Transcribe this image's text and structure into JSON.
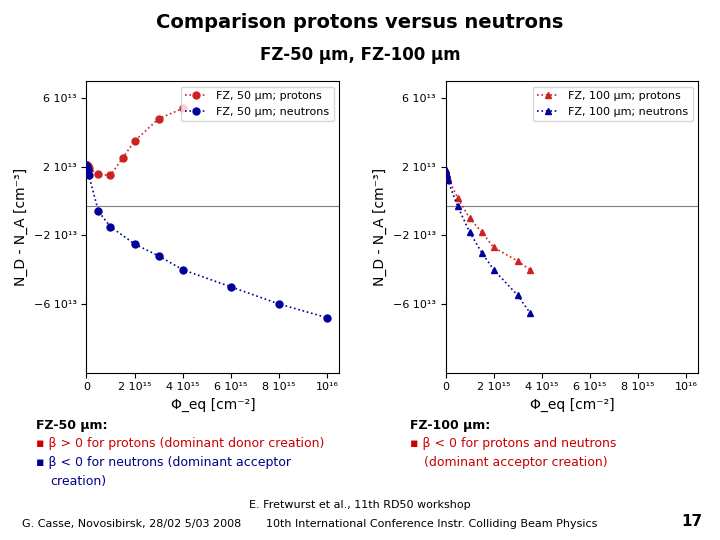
{
  "title": "Comparison protons versus neutrons",
  "subtitle": "FZ-50 μm, FZ-100 μm",
  "annotations": [
    "E. Fretwurst et al., 11th RD50 workshop",
    "G. Casse, Novosibirsk, 28/02 5/03 2008",
    "10th International Conference Instr. Colliding Beam Physics",
    "17"
  ],
  "chart_data": [
    {
      "type": "line",
      "x_label": "Φ_eq [cm⁻²]",
      "y_label": "N_D - N_A [cm⁻³]",
      "xlim": [
        0,
        1.05e+16
      ],
      "ylim": [
        -100000000000000.0,
        70000000000000.0
      ],
      "xticks": [
        0,
        {
          "value": 2000000000000000.0,
          "label": "2 10¹⁵"
        },
        {
          "value": 4000000000000000.0,
          "label": "4 10¹⁵"
        },
        {
          "value": 6000000000000000.0,
          "label": "6 10¹⁵"
        },
        {
          "value": 8000000000000000.0,
          "label": "8 10¹⁵"
        },
        {
          "value": 1e+16,
          "label": "10¹⁶"
        }
      ],
      "yticks": [
        {
          "value": -60000000000000.0,
          "label": "−6 10¹³"
        },
        {
          "value": -20000000000000.0,
          "label": "−2 10¹³"
        },
        {
          "value": 20000000000000.0,
          "label": "2 10¹³"
        },
        {
          "value": 60000000000000.0,
          "label": "6 10¹³"
        }
      ],
      "hline_y": -3000000000000.0,
      "legend": "upper right",
      "series": [
        {
          "name": "FZ, 50 μm; protons",
          "color": "#cc2222",
          "marker": "o",
          "line_style": "dotted",
          "x": [
            0.0,
            20000000000000.0,
            50000000000000.0,
            100000000000000.0,
            500000000000000.0,
            1000000000000000.0,
            1500000000000000.0,
            2000000000000000.0,
            3000000000000000.0,
            4000000000000000.0
          ],
          "values": [
            21000000000000.0,
            21000000000000.0,
            20500000000000.0,
            19000000000000.0,
            15500000000000.0,
            15000000000000.0,
            25000000000000.0,
            35000000000000.0,
            48000000000000.0,
            54000000000000.0
          ]
        },
        {
          "name": "FZ, 50 μm; neutrons",
          "color": "#000099",
          "marker": "o",
          "line_style": "dotted",
          "x": [
            0.0,
            20000000000000.0,
            50000000000000.0,
            100000000000000.0,
            500000000000000.0,
            1000000000000000.0,
            2000000000000000.0,
            3000000000000000.0,
            4000000000000000.0,
            6000000000000000.0,
            8000000000000000.0,
            1e+16
          ],
          "values": [
            21000000000000.0,
            20000000000000.0,
            18000000000000.0,
            15000000000000.0,
            -6000000000000.0,
            -15000000000000.0,
            -25000000000000.0,
            -32000000000000.0,
            -40000000000000.0,
            -50000000000000.0,
            -60000000000000.0,
            -68000000000000.0
          ]
        }
      ],
      "annotations": [
        {
          "text": "FZ-50 μm:"
        },
        {
          "text": "▪ β > 0 for protons (dominant donor creation)",
          "color": "#cc0000"
        },
        {
          "text": "▪ β < 0 for neutrons (dominant acceptor",
          "color": "#00008B"
        },
        {
          "text": "creation)",
          "color": "#00008B"
        }
      ]
    },
    {
      "type": "line",
      "x_label": "Φ_eq [cm⁻²]",
      "y_label": "N_D - N_A [cm⁻³]",
      "xlim": [
        0,
        1.05e+16
      ],
      "ylim": [
        -100000000000000.0,
        70000000000000.0
      ],
      "xticks": [
        0,
        {
          "value": 2000000000000000.0,
          "label": "2 10¹⁵"
        },
        {
          "value": 4000000000000000.0,
          "label": "4 10¹⁵"
        },
        {
          "value": 6000000000000000.0,
          "label": "6 10¹⁵"
        },
        {
          "value": 8000000000000000.0,
          "label": "8 10¹⁵"
        },
        {
          "value": 1e+16,
          "label": "10¹⁶"
        }
      ],
      "yticks": [
        {
          "value": -60000000000000.0,
          "label": "−6 10¹³"
        },
        {
          "value": -20000000000000.0,
          "label": "−2 10¹³"
        },
        {
          "value": 20000000000000.0,
          "label": "2 10¹³"
        },
        {
          "value": 60000000000000.0,
          "label": "6 10¹³"
        }
      ],
      "hline_y": -3000000000000.0,
      "legend": "upper right",
      "series": [
        {
          "name": "FZ, 100 μm; protons",
          "color": "#cc2222",
          "marker": "^",
          "line_style": "dotted",
          "x": [
            0.0,
            20000000000000.0,
            50000000000000.0,
            100000000000000.0,
            500000000000000.0,
            1000000000000000.0,
            1500000000000000.0,
            2000000000000000.0,
            3000000000000000.0,
            3500000000000000.0
          ],
          "values": [
            18000000000000.0,
            17000000000000.0,
            15500000000000.0,
            13500000000000.0,
            2000000000000.0,
            -10000000000000.0,
            -18000000000000.0,
            -27000000000000.0,
            -35000000000000.0,
            -40000000000000.0
          ]
        },
        {
          "name": "FZ, 100 μm; neutrons",
          "color": "#000099",
          "marker": "^",
          "line_style": "dotted",
          "x": [
            0.0,
            20000000000000.0,
            50000000000000.0,
            100000000000000.0,
            500000000000000.0,
            1000000000000000.0,
            1500000000000000.0,
            2000000000000000.0,
            3000000000000000.0,
            3500000000000000.0
          ],
          "values": [
            18000000000000.0,
            17000000000000.0,
            15000000000000.0,
            12000000000000.0,
            -3000000000000.0,
            -18000000000000.0,
            -30000000000000.0,
            -40000000000000.0,
            -55000000000000.0,
            -65000000000000.0
          ]
        }
      ],
      "annotations": [
        {
          "text": "FZ-100 μm:"
        },
        {
          "text": "▪ β < 0 for protons and neutrons",
          "color": "#cc0000"
        },
        {
          "text": "(dominant acceptor creation)",
          "color": "#cc0000"
        }
      ]
    }
  ]
}
